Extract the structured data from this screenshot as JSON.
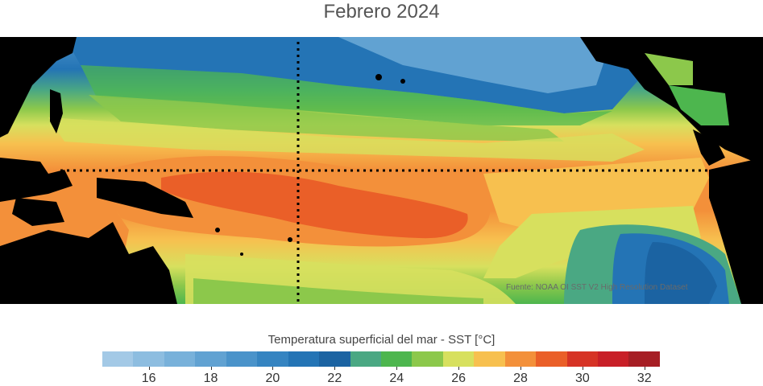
{
  "title": "Febrero 2024",
  "credit": "Fuente: NOAA OI SST V2 High Resolution Dataset",
  "legend": {
    "title": "Temperatura superficial del mar - SST  [°C]",
    "min": 15,
    "step": 1,
    "colors": [
      "#a3c9e6",
      "#8dbde0",
      "#78b1da",
      "#61a2d2",
      "#4a93ca",
      "#3584c1",
      "#2474b5",
      "#1b63a2",
      "#4aa883",
      "#4db64e",
      "#8cc84b",
      "#d7e05e",
      "#f7c04f",
      "#f3903a",
      "#ea5f28",
      "#d63325",
      "#c81f27",
      "#a61e24"
    ],
    "tick_values": [
      16,
      18,
      20,
      22,
      24,
      26,
      28,
      30,
      32
    ],
    "tick_labels": [
      "16",
      "18",
      "20",
      "22",
      "24",
      "26",
      "28",
      "30",
      "32"
    ]
  }
}
